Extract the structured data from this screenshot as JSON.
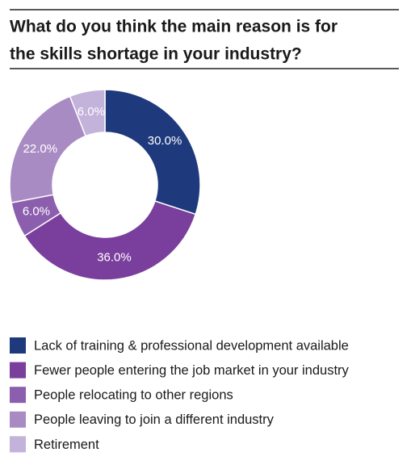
{
  "chart_data": {
    "type": "donut",
    "title": [
      "What do you think the main reason is for",
      "the skills shortage in your industry?"
    ],
    "categories": [
      "Lack of training & professional development available",
      "Fewer people entering the job market in your industry",
      "People relocating to other regions",
      "People leaving to join a different industry",
      "Retirement"
    ],
    "values": [
      30,
      36,
      6,
      22,
      6
    ],
    "value_labels": [
      "30.0%",
      "36.0%",
      "6.0%",
      "22.0%",
      "6.0%"
    ],
    "colors": [
      "#1e3a7c",
      "#7a3f9d",
      "#8c5fae",
      "#a98bc4",
      "#c3b2d9"
    ]
  }
}
